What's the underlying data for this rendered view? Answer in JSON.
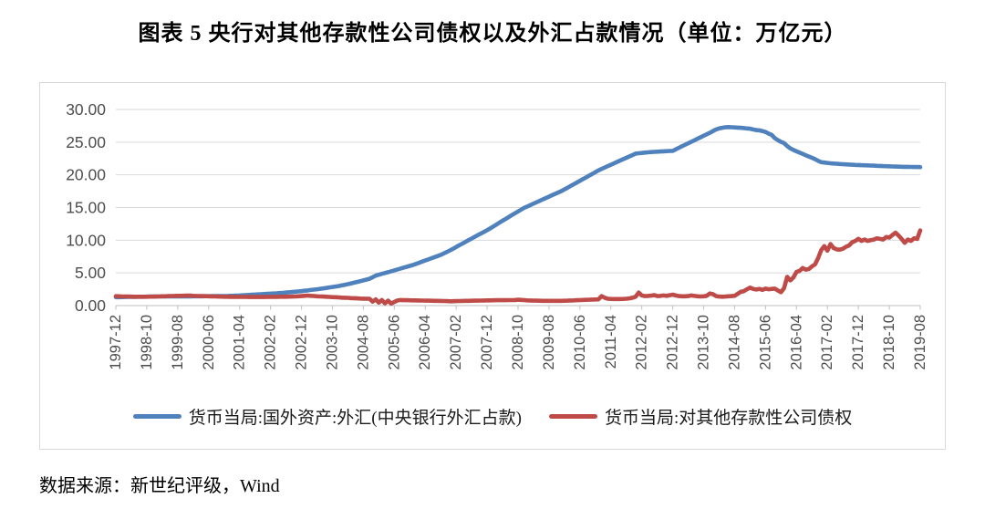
{
  "title": "图表 5  央行对其他存款性公司债权以及外汇占款情况（单位：万亿元）",
  "source_note": "数据来源：新世纪评级，Wind",
  "colors": {
    "fx_line": "#4F81BD",
    "claims_line": "#BE4B48",
    "gridline": "#D9D9D9",
    "axis": "#BFBFBF",
    "tick_label": "#4D4D4D",
    "chart_border": "#D9D9D9",
    "legend_text": "#1A1A1A"
  },
  "legend": [
    {
      "label": "货币当局:国外资产:外汇(中央银行外汇占款)"
    },
    {
      "label": "货币当局:对其他存款性公司债权"
    }
  ],
  "chart_data": {
    "type": "line",
    "title": "图表 5  央行对其他存款性公司债权以及外汇占款情况（单位：万亿元）",
    "unit": "万亿元",
    "x_start": "1997-12",
    "x_frequency": "monthly",
    "x_tick_step_months": 10,
    "x_tick_labels": [
      "1997-12",
      "1998-10",
      "1999-08",
      "2000-06",
      "2001-04",
      "2002-02",
      "2002-12",
      "2003-10",
      "2004-08",
      "2005-06",
      "2006-04",
      "2007-02",
      "2007-12",
      "2008-10",
      "2009-08",
      "2010-06",
      "2011-04",
      "2012-02",
      "2012-12",
      "2013-10",
      "2014-08",
      "2015-06",
      "2016-04",
      "2017-02",
      "2017-12",
      "2018-10",
      "2019-08"
    ],
    "y_tick_labels": [
      "0.00",
      "5.00",
      "10.00",
      "15.00",
      "20.00",
      "25.00",
      "30.00"
    ],
    "y_tick_values": [
      0,
      5,
      10,
      15,
      20,
      25,
      30
    ],
    "ylim": [
      0,
      30
    ],
    "grid": "horizontal",
    "legend_position": "bottom",
    "series": [
      {
        "name": "货币当局:国外资产:外汇(中央银行外汇占款)",
        "color": "#4F81BD",
        "values": [
          1.28,
          1.29,
          1.3,
          1.31,
          1.32,
          1.33,
          1.34,
          1.35,
          1.36,
          1.36,
          1.37,
          1.38,
          1.39,
          1.39,
          1.4,
          1.4,
          1.4,
          1.4,
          1.4,
          1.41,
          1.41,
          1.41,
          1.41,
          1.41,
          1.41,
          1.42,
          1.42,
          1.43,
          1.43,
          1.44,
          1.44,
          1.45,
          1.45,
          1.46,
          1.46,
          1.46,
          1.47,
          1.49,
          1.51,
          1.53,
          1.55,
          1.58,
          1.6,
          1.63,
          1.66,
          1.69,
          1.72,
          1.74,
          1.77,
          1.8,
          1.83,
          1.86,
          1.89,
          1.93,
          1.96,
          2.0,
          2.04,
          2.08,
          2.12,
          2.16,
          2.21,
          2.27,
          2.32,
          2.38,
          2.44,
          2.5,
          2.57,
          2.63,
          2.7,
          2.77,
          2.84,
          2.91,
          2.98,
          3.08,
          3.18,
          3.28,
          3.39,
          3.5,
          3.61,
          3.73,
          3.85,
          3.97,
          4.1,
          4.34,
          4.59,
          4.72,
          4.85,
          4.98,
          5.11,
          5.25,
          5.38,
          5.52,
          5.66,
          5.8,
          5.93,
          6.07,
          6.21,
          6.38,
          6.55,
          6.72,
          6.89,
          7.06,
          7.24,
          7.41,
          7.58,
          7.76,
          7.98,
          8.21,
          8.44,
          8.7,
          8.96,
          9.22,
          9.48,
          9.74,
          10.0,
          10.26,
          10.52,
          10.78,
          11.03,
          11.28,
          11.52,
          11.81,
          12.1,
          12.39,
          12.68,
          12.97,
          13.26,
          13.55,
          13.84,
          14.12,
          14.4,
          14.68,
          14.96,
          15.17,
          15.38,
          15.6,
          15.81,
          16.02,
          16.24,
          16.45,
          16.66,
          16.88,
          17.09,
          17.3,
          17.51,
          17.77,
          18.03,
          18.3,
          18.56,
          18.82,
          19.09,
          19.35,
          19.61,
          19.88,
          20.14,
          20.41,
          20.68,
          20.9,
          21.11,
          21.33,
          21.54,
          21.75,
          21.97,
          22.18,
          22.4,
          22.61,
          22.82,
          23.03,
          23.24,
          23.3,
          23.35,
          23.4,
          23.44,
          23.48,
          23.51,
          23.54,
          23.57,
          23.6,
          23.62,
          23.65,
          23.67,
          23.9,
          24.14,
          24.37,
          24.6,
          24.83,
          25.06,
          25.29,
          25.52,
          25.75,
          25.98,
          26.21,
          26.43,
          26.7,
          26.95,
          27.1,
          27.2,
          27.28,
          27.3,
          27.28,
          27.25,
          27.22,
          27.2,
          27.15,
          27.1,
          27.05,
          26.95,
          26.85,
          26.8,
          26.7,
          26.55,
          26.3,
          26.1,
          25.6,
          25.3,
          25.05,
          24.85,
          24.4,
          24.05,
          23.8,
          23.6,
          23.4,
          23.2,
          23.0,
          22.8,
          22.6,
          22.4,
          22.15,
          21.94,
          21.88,
          21.82,
          21.77,
          21.73,
          21.7,
          21.66,
          21.63,
          21.6,
          21.57,
          21.55,
          21.52,
          21.5,
          21.48,
          21.46,
          21.44,
          21.42,
          21.4,
          21.38,
          21.36,
          21.34,
          21.32,
          21.3,
          21.28,
          21.26,
          21.25,
          21.24,
          21.23,
          21.22,
          21.21,
          21.2,
          21.19,
          21.18
        ]
      },
      {
        "name": "货币当局:对其他存款性公司债权",
        "color": "#BE4B48",
        "values": [
          1.44,
          1.42,
          1.4,
          1.39,
          1.38,
          1.37,
          1.36,
          1.35,
          1.35,
          1.36,
          1.36,
          1.37,
          1.37,
          1.38,
          1.4,
          1.42,
          1.43,
          1.45,
          1.46,
          1.48,
          1.49,
          1.5,
          1.51,
          1.52,
          1.52,
          1.5,
          1.48,
          1.46,
          1.45,
          1.44,
          1.42,
          1.41,
          1.4,
          1.38,
          1.37,
          1.36,
          1.35,
          1.34,
          1.34,
          1.33,
          1.33,
          1.32,
          1.32,
          1.31,
          1.31,
          1.31,
          1.31,
          1.31,
          1.31,
          1.32,
          1.33,
          1.34,
          1.34,
          1.35,
          1.35,
          1.36,
          1.37,
          1.38,
          1.4,
          1.42,
          1.45,
          1.5,
          1.53,
          1.5,
          1.46,
          1.43,
          1.4,
          1.38,
          1.35,
          1.33,
          1.3,
          1.28,
          1.25,
          1.22,
          1.2,
          1.18,
          1.15,
          1.13,
          1.1,
          1.08,
          1.06,
          1.05,
          1.04,
          0.6,
          0.95,
          0.45,
          0.85,
          0.35,
          0.75,
          0.3,
          0.55,
          0.78,
          0.85,
          0.83,
          0.82,
          0.81,
          0.8,
          0.79,
          0.78,
          0.77,
          0.76,
          0.75,
          0.74,
          0.73,
          0.72,
          0.71,
          0.7,
          0.68,
          0.66,
          0.67,
          0.68,
          0.7,
          0.71,
          0.72,
          0.73,
          0.74,
          0.75,
          0.76,
          0.77,
          0.78,
          0.79,
          0.8,
          0.81,
          0.82,
          0.82,
          0.83,
          0.83,
          0.84,
          0.84,
          0.85,
          0.9,
          0.87,
          0.84,
          0.8,
          0.78,
          0.76,
          0.75,
          0.74,
          0.73,
          0.72,
          0.72,
          0.72,
          0.72,
          0.72,
          0.72,
          0.74,
          0.76,
          0.78,
          0.8,
          0.82,
          0.84,
          0.86,
          0.88,
          0.9,
          0.92,
          0.94,
          0.95,
          1.45,
          1.2,
          1.05,
          1.02,
          1.0,
          1.0,
          1.0,
          1.02,
          1.05,
          1.1,
          1.2,
          1.35,
          2.0,
          1.55,
          1.45,
          1.48,
          1.52,
          1.6,
          1.45,
          1.48,
          1.55,
          1.5,
          1.58,
          1.67,
          1.55,
          1.45,
          1.43,
          1.42,
          1.45,
          1.55,
          1.48,
          1.42,
          1.4,
          1.42,
          1.5,
          1.85,
          1.75,
          1.45,
          1.38,
          1.35,
          1.38,
          1.42,
          1.45,
          1.5,
          1.8,
          2.1,
          2.2,
          2.5,
          2.75,
          2.55,
          2.45,
          2.55,
          2.4,
          2.6,
          2.5,
          2.55,
          2.6,
          2.3,
          2.05,
          2.66,
          4.4,
          3.85,
          4.3,
          5.15,
          5.3,
          5.75,
          5.5,
          5.6,
          6.0,
          6.3,
          7.3,
          8.47,
          9.1,
          8.4,
          9.4,
          8.8,
          8.6,
          8.55,
          8.7,
          9.0,
          9.2,
          9.7,
          9.9,
          10.22,
          9.9,
          10.1,
          9.9,
          10.0,
          10.1,
          10.3,
          10.2,
          10.1,
          10.5,
          10.4,
          10.8,
          11.15,
          10.7,
          10.2,
          9.6,
          10.1,
          9.9,
          10.3,
          10.2,
          11.5
        ]
      }
    ]
  }
}
